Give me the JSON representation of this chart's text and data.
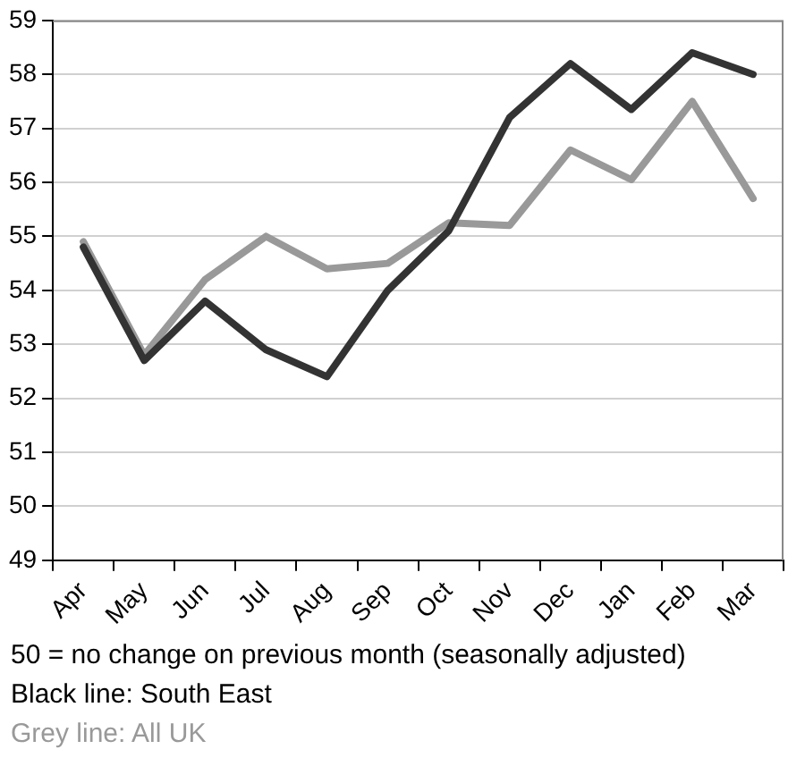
{
  "chart_data": {
    "type": "line",
    "categories": [
      "Apr",
      "May",
      "Jun",
      "Jul",
      "Aug",
      "Sep",
      "Oct",
      "Nov",
      "Dec",
      "Jan",
      "Feb",
      "Mar"
    ],
    "series": [
      {
        "color": "#333333",
        "values": [
          54.8,
          52.7,
          53.8,
          52.9,
          52.4,
          54.0,
          55.1,
          57.2,
          58.2,
          57.35,
          58.4,
          58.0
        ]
      },
      {
        "color": "#999999",
        "values": [
          54.9,
          52.8,
          54.2,
          55.0,
          54.4,
          54.5,
          55.25,
          55.2,
          56.6,
          56.05,
          57.5,
          55.7
        ]
      }
    ],
    "ylim": [
      49,
      59
    ],
    "yticks": [
      49,
      50,
      51,
      52,
      53,
      54,
      55,
      56,
      57,
      58,
      59
    ],
    "grid": "y",
    "legend": false,
    "marker": "none",
    "line_style": "solid",
    "annotations": [
      "50 = no change on previous month (seasonally adjusted)",
      "Black line: South East",
      "Grey line: All UK"
    ]
  }
}
